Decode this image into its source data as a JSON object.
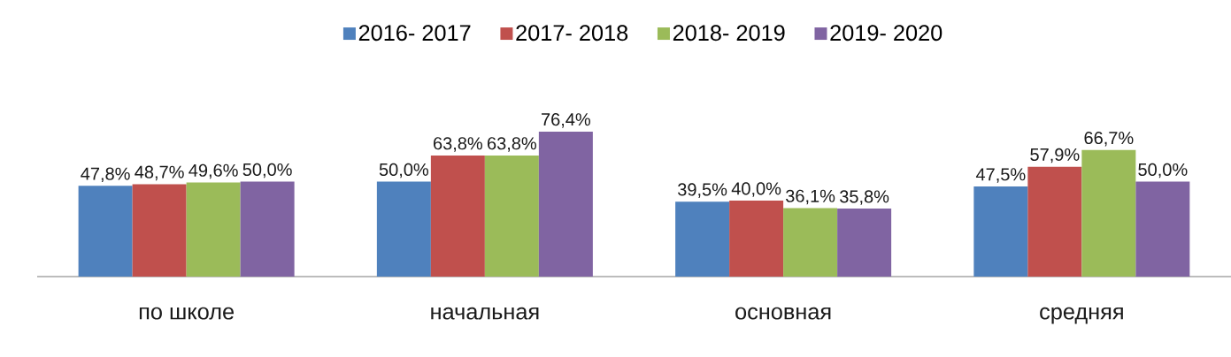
{
  "chart_data": {
    "type": "bar",
    "categories": [
      "по школе",
      "начальная",
      "основная",
      "средняя"
    ],
    "series": [
      {
        "name": "2016- 2017",
        "color": "#4f81bd",
        "values": [
          47.8,
          50.0,
          39.5,
          47.5
        ],
        "value_labels": [
          "47,8%",
          "50,0%",
          "39,5%",
          "47,5%"
        ]
      },
      {
        "name": "2017- 2018",
        "color": "#c0504d",
        "values": [
          48.7,
          63.8,
          40.0,
          57.9
        ],
        "value_labels": [
          "48,7%",
          "63,8%",
          "40,0%",
          "57,9%"
        ]
      },
      {
        "name": "2018- 2019",
        "color": "#9bbb59",
        "values": [
          49.6,
          63.8,
          36.1,
          66.7
        ],
        "value_labels": [
          "49,6%",
          "63,8%",
          "36,1%",
          "66,7%"
        ]
      },
      {
        "name": "2019- 2020",
        "color": "#8064a2",
        "values": [
          50.0,
          76.4,
          35.8,
          50.0
        ],
        "value_labels": [
          "50,0%",
          "76,4%",
          "35,8%",
          "50,0%"
        ]
      }
    ],
    "legend": "top",
    "tick_labels": "x"
  }
}
